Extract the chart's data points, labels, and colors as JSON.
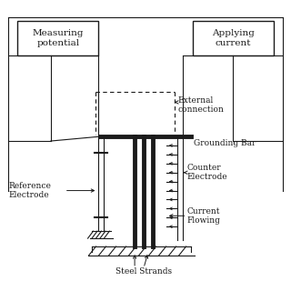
{
  "bg_color": "#ffffff",
  "line_color": "#1a1a1a",
  "box1_text": "Measuring\npotential",
  "box2_text": "Applying\ncurrent",
  "labels": {
    "external_connection": "External\nconnection",
    "grounding_bar": "Grounding Bar",
    "reference_electrode": "Reference\nElectrode",
    "counter_electrode": "Counter\nElectrode",
    "current_flowing": "Current\nFlowing",
    "steel_strands": "Steel Strands"
  }
}
